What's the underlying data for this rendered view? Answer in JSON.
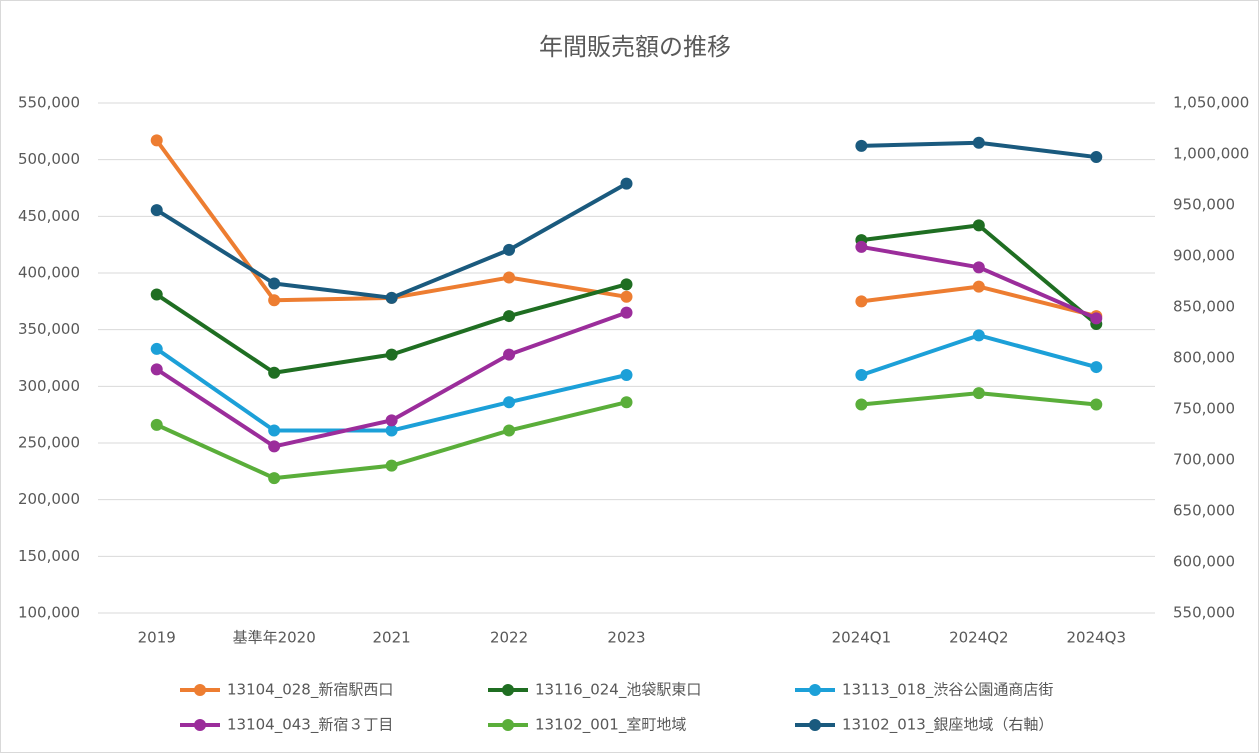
{
  "chart_data": {
    "type": "line",
    "title": "年間販売額の推移",
    "categories": [
      "2019",
      "基準年2020",
      "2021",
      "2022",
      "2023",
      null,
      "2024Q1",
      "2024Q2",
      "2024Q3"
    ],
    "ylim": [
      100000,
      550000
    ],
    "yticks": [
      {
        "value": 100000,
        "label": "100,000"
      },
      {
        "value": 150000,
        "label": "150,000"
      },
      {
        "value": 200000,
        "label": "200,000"
      },
      {
        "value": 250000,
        "label": "250,000"
      },
      {
        "value": 300000,
        "label": "300,000"
      },
      {
        "value": 350000,
        "label": "350,000"
      },
      {
        "value": 400000,
        "label": "400,000"
      },
      {
        "value": 450000,
        "label": "450,000"
      },
      {
        "value": 500000,
        "label": "500,000"
      },
      {
        "value": 550000,
        "label": "550,000"
      }
    ],
    "y2lim": [
      550000,
      1050000
    ],
    "y2ticks": [
      {
        "value": 550000,
        "label": "550,000"
      },
      {
        "value": 600000,
        "label": "600,000"
      },
      {
        "value": 650000,
        "label": "650,000"
      },
      {
        "value": 700000,
        "label": "700,000"
      },
      {
        "value": 750000,
        "label": "750,000"
      },
      {
        "value": 800000,
        "label": "800,000"
      },
      {
        "value": 850000,
        "label": "850,000"
      },
      {
        "value": 900000,
        "label": "900,000"
      },
      {
        "value": 950000,
        "label": "950,000"
      },
      {
        "value": 1000000,
        "label": "1,000,000"
      },
      {
        "value": 1050000,
        "label": "1,050,000"
      }
    ],
    "grid": true,
    "legend": "bottom",
    "series": [
      {
        "name": "13104_028_新宿駅西口",
        "color": "#ed7d31",
        "values": [
          517000,
          376000,
          378000,
          396000,
          379000,
          null,
          375000,
          388000,
          362000
        ]
      },
      {
        "name": "13116_024_池袋駅東口",
        "color": "#1f6e22",
        "values": [
          381000,
          312000,
          328000,
          362000,
          390000,
          null,
          429000,
          442000,
          355000
        ]
      },
      {
        "name": "13113_018_渋谷公園通商店街",
        "color": "#1ca0d8",
        "values": [
          333000,
          261000,
          261000,
          286000,
          310000,
          null,
          310000,
          345000,
          317000
        ]
      },
      {
        "name": "13104_043_新宿３丁目",
        "color": "#9b2d9b",
        "values": [
          315000,
          247000,
          270000,
          328000,
          365000,
          null,
          423000,
          405000,
          360000
        ]
      },
      {
        "name": "13102_001_室町地域",
        "color": "#5aae3a",
        "values": [
          266000,
          219000,
          230000,
          261000,
          286000,
          null,
          284000,
          294000,
          284000
        ]
      },
      {
        "name": "13102_013_銀座地域（右軸）",
        "color": "#1a5a7e",
        "axis": "y2",
        "values": [
          945000,
          873000,
          859000,
          906000,
          971000,
          null,
          1008000,
          1011000,
          997000
        ]
      }
    ]
  }
}
